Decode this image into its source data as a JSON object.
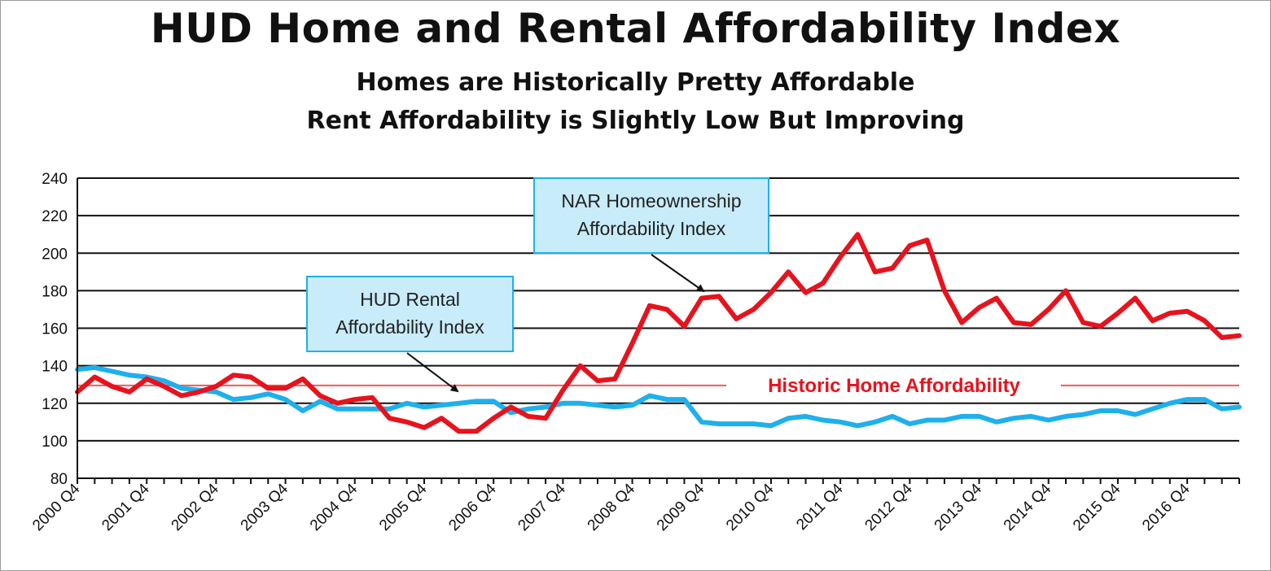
{
  "header": {
    "title": "HUD Home and Rental Affordability Index",
    "subtitle_line1": "Homes are Historically Pretty Affordable",
    "subtitle_line2": "Rent Affordability is Slightly Low But Improving"
  },
  "colors": {
    "home_series": "#e8121d",
    "rental_series": "#1fb0ec",
    "reference_line": "#f05a5a",
    "callout_fill": "#c8ecf9",
    "callout_border": "#1fb0ec"
  },
  "chart_data": {
    "type": "line",
    "title": "HUD Home and Rental Affordability Index",
    "ylim": [
      80,
      240
    ],
    "yticks": [
      80,
      100,
      120,
      140,
      160,
      180,
      200,
      220,
      240
    ],
    "grid": true,
    "xlim": [
      2000.75,
      2017.5
    ],
    "x_tick_labels": [
      "2000 Q4",
      "2001 Q4",
      "2002 Q4",
      "2003 Q4",
      "2004 Q4",
      "2005 Q4",
      "2006 Q4",
      "2007 Q4",
      "2008 Q4",
      "2009 Q4",
      "2010 Q4",
      "2011 Q4",
      "2012 Q4",
      "2013 Q4",
      "2014 Q4",
      "2015 Q4",
      "2016 Q4"
    ],
    "x_tick_values": [
      2000.75,
      2001.75,
      2002.75,
      2003.75,
      2004.75,
      2005.75,
      2006.75,
      2007.75,
      2008.75,
      2009.75,
      2010.75,
      2011.75,
      2012.75,
      2013.75,
      2014.75,
      2015.75,
      2016.75
    ],
    "reference_line": {
      "value": 129.5,
      "label": "Historic Home Affordability"
    },
    "series": [
      {
        "name": "NAR Homeownership Affordability Index",
        "x": [
          2000.75,
          2001.0,
          2001.25,
          2001.5,
          2001.75,
          2002.0,
          2002.25,
          2002.5,
          2002.75,
          2003.0,
          2003.25,
          2003.5,
          2003.75,
          2004.0,
          2004.25,
          2004.5,
          2004.75,
          2005.0,
          2005.25,
          2005.5,
          2005.75,
          2006.0,
          2006.25,
          2006.5,
          2006.75,
          2007.0,
          2007.25,
          2007.5,
          2007.75,
          2008.0,
          2008.25,
          2008.5,
          2008.75,
          2009.0,
          2009.25,
          2009.5,
          2009.75,
          2010.0,
          2010.25,
          2010.5,
          2010.75,
          2011.0,
          2011.25,
          2011.5,
          2011.75,
          2012.0,
          2012.25,
          2012.5,
          2012.75,
          2013.0,
          2013.25,
          2013.5,
          2013.75,
          2014.0,
          2014.25,
          2014.5,
          2014.75,
          2015.0,
          2015.25,
          2015.5,
          2015.75,
          2016.0,
          2016.25,
          2016.5,
          2016.75,
          2017.0,
          2017.25,
          2017.5
        ],
        "values": [
          126,
          134,
          129,
          126,
          133,
          129,
          124,
          126,
          129,
          135,
          134,
          128,
          128,
          133,
          124,
          120,
          122,
          123,
          112,
          110,
          107,
          112,
          105,
          105,
          112,
          118,
          113,
          112,
          127,
          140,
          132,
          133,
          152,
          172,
          170,
          161,
          176,
          177,
          165,
          170,
          179,
          190,
          179,
          184,
          198,
          210,
          190,
          192,
          204,
          207,
          180,
          163,
          171,
          176,
          163,
          162,
          170,
          180,
          163,
          161,
          168,
          176,
          164,
          168,
          169,
          164,
          155,
          156
        ]
      },
      {
        "name": "HUD Rental Affordability Index",
        "x": [
          2000.75,
          2001.0,
          2001.25,
          2001.5,
          2001.75,
          2002.0,
          2002.25,
          2002.5,
          2002.75,
          2003.0,
          2003.25,
          2003.5,
          2003.75,
          2004.0,
          2004.25,
          2004.5,
          2004.75,
          2005.0,
          2005.25,
          2005.5,
          2005.75,
          2006.0,
          2006.25,
          2006.5,
          2006.75,
          2007.0,
          2007.25,
          2007.5,
          2007.75,
          2008.0,
          2008.25,
          2008.5,
          2008.75,
          2009.0,
          2009.25,
          2009.5,
          2009.75,
          2010.0,
          2010.25,
          2010.5,
          2010.75,
          2011.0,
          2011.25,
          2011.5,
          2011.75,
          2012.0,
          2012.25,
          2012.5,
          2012.75,
          2013.0,
          2013.25,
          2013.5,
          2013.75,
          2014.0,
          2014.25,
          2014.5,
          2014.75,
          2015.0,
          2015.25,
          2015.5,
          2015.75,
          2016.0,
          2016.25,
          2016.5,
          2016.75,
          2017.0,
          2017.25,
          2017.5
        ],
        "values": [
          138,
          139,
          137,
          135,
          134,
          132,
          128,
          127,
          126,
          122,
          123,
          125,
          122,
          116,
          121,
          117,
          117,
          117,
          117,
          120,
          118,
          119,
          120,
          121,
          121,
          115,
          117,
          118,
          120,
          120,
          119,
          118,
          119,
          124,
          122,
          122,
          110,
          109,
          109,
          109,
          108,
          112,
          113,
          111,
          110,
          108,
          110,
          113,
          109,
          111,
          111,
          113,
          113,
          110,
          112,
          113,
          111,
          113,
          114,
          116,
          116,
          114,
          117,
          120,
          122,
          122,
          117,
          118
        ]
      }
    ],
    "annotations": [
      {
        "lines": [
          "NAR Homeownership",
          "Affordability Index"
        ],
        "target_series": 0
      },
      {
        "lines": [
          "HUD Rental",
          "Affordability Index"
        ],
        "target_series": 1
      }
    ]
  }
}
